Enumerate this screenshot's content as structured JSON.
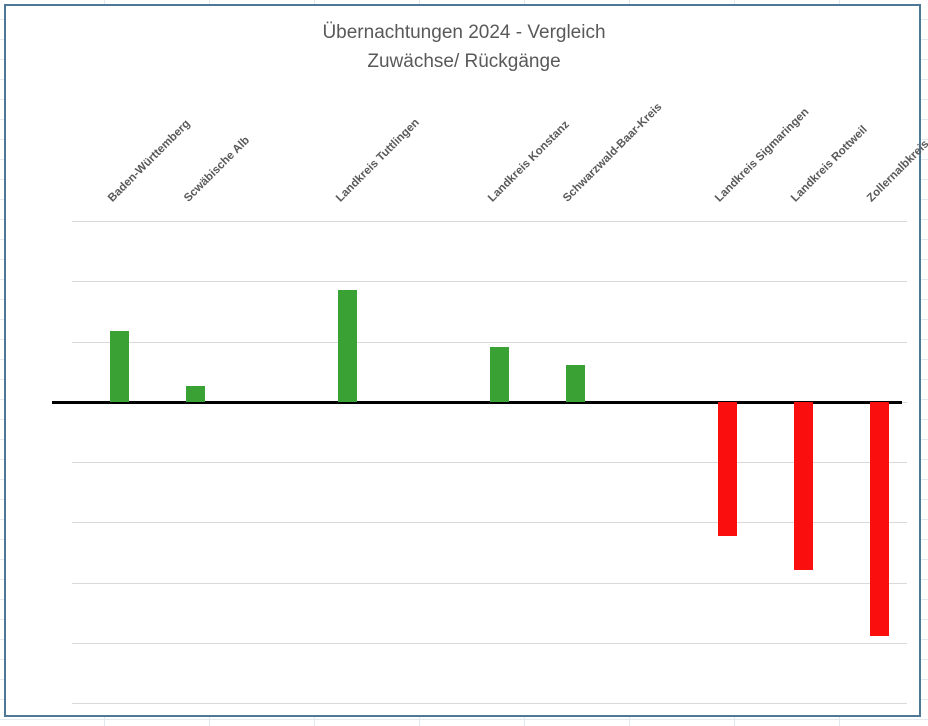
{
  "window": {
    "chart_border_color": "#4d7996",
    "spreadsheet_gridline_color": "#e2eaf1"
  },
  "chart_data": {
    "type": "bar",
    "title": "Übernachtungen 2024 - Vergleich",
    "subtitle": "Zuwächse/ Rückgänge",
    "categories": [
      "Baden-Württemberg",
      "Scwäbische Alb",
      "",
      "Landkreis Tuttlingen",
      "",
      "Landkreis Konstanz",
      "Schwarzwald-Baar-Kreis",
      "",
      "Landkreis Sigmaringen",
      "Landkreis Rottweil",
      "Zollernalbkreis"
    ],
    "values": [
      1.18,
      0.27,
      null,
      1.86,
      null,
      0.91,
      0.61,
      null,
      -2.22,
      -2.79,
      -3.88
    ],
    "value_axis": {
      "min": -5,
      "max": 3,
      "gridline_step": 1,
      "tick_labels_visible": false
    },
    "category_labels_rotation_deg": 45,
    "legend": "none",
    "grid": "horizontal",
    "colors": {
      "positive_bar": "#3aa135",
      "negative_bar": "#fb0e0e",
      "gridline": "#d9d9d9",
      "axis_line": "#000000",
      "text": "#595959"
    }
  }
}
